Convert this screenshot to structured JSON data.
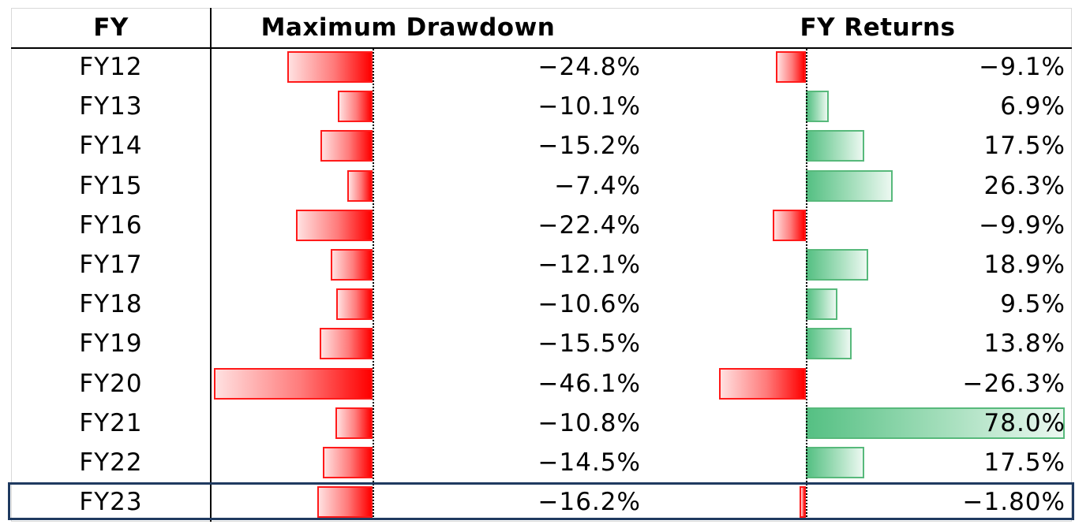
{
  "headers": {
    "fy": "FY",
    "drawdown": "Maximum Drawdown",
    "returns": "FY Returns"
  },
  "chart_data": {
    "type": "table",
    "columns": [
      "FY",
      "Maximum Drawdown",
      "FY Returns"
    ],
    "rows": [
      {
        "fy": "FY12",
        "drawdown": -24.8,
        "drawdown_label": "-24.8%",
        "returns": -9.1,
        "returns_label": "-9.1%"
      },
      {
        "fy": "FY13",
        "drawdown": -10.1,
        "drawdown_label": "-10.1%",
        "returns": 6.9,
        "returns_label": "6.9%"
      },
      {
        "fy": "FY14",
        "drawdown": -15.2,
        "drawdown_label": "-15.2%",
        "returns": 17.5,
        "returns_label": "17.5%"
      },
      {
        "fy": "FY15",
        "drawdown": -7.4,
        "drawdown_label": "-7.4%",
        "returns": 26.3,
        "returns_label": "26.3%"
      },
      {
        "fy": "FY16",
        "drawdown": -22.4,
        "drawdown_label": "-22.4%",
        "returns": -9.9,
        "returns_label": "-9.9%"
      },
      {
        "fy": "FY17",
        "drawdown": -12.1,
        "drawdown_label": "-12.1%",
        "returns": 18.9,
        "returns_label": "18.9%"
      },
      {
        "fy": "FY18",
        "drawdown": -10.6,
        "drawdown_label": "-10.6%",
        "returns": 9.5,
        "returns_label": "9.5%"
      },
      {
        "fy": "FY19",
        "drawdown": -15.5,
        "drawdown_label": "-15.5%",
        "returns": 13.8,
        "returns_label": "13.8%"
      },
      {
        "fy": "FY20",
        "drawdown": -46.1,
        "drawdown_label": "-46.1%",
        "returns": -26.3,
        "returns_label": "-26.3%"
      },
      {
        "fy": "FY21",
        "drawdown": -10.8,
        "drawdown_label": "-10.8%",
        "returns": 78.0,
        "returns_label": "78.0%"
      },
      {
        "fy": "FY22",
        "drawdown": -14.5,
        "drawdown_label": "-14.5%",
        "returns": 17.5,
        "returns_label": "17.5%"
      },
      {
        "fy": "FY23",
        "drawdown": -16.2,
        "drawdown_label": "-16.2%",
        "returns": -1.8,
        "returns_label": "-1.80%"
      }
    ],
    "highlighted_row": "FY23",
    "colors": {
      "negative": "#ff0000",
      "positive": "#5cbf85",
      "highlight_border": "#1f3a60"
    }
  }
}
